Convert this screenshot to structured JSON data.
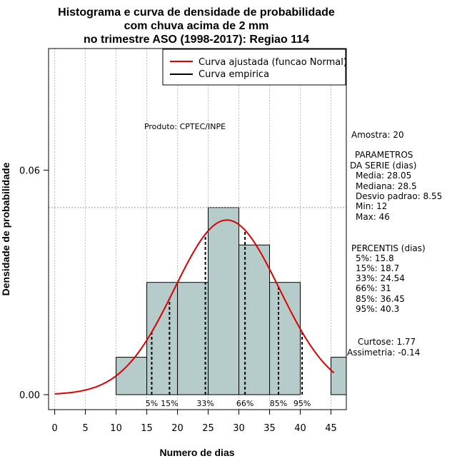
{
  "chart_data": {
    "type": "bar",
    "title_lines": [
      "Histograma e curva de densidade de probabilidade",
      "com chuva acima de 2 mm",
      "no trimestre ASO (1998-2017): Regiao 114"
    ],
    "xlabel": "Numero de dias",
    "ylabel": "Densidade de probabilidade",
    "xlim": [
      -1,
      47.5
    ],
    "ylim": [
      -0.004,
      0.0925
    ],
    "x_ticks": [
      0,
      5,
      10,
      15,
      20,
      25,
      30,
      35,
      40,
      45
    ],
    "y_ticks": [
      {
        "value": 0.0,
        "label": "0.00"
      },
      {
        "value": 0.06,
        "label": "0.06"
      }
    ],
    "grid": true,
    "bins": [
      {
        "start": 10,
        "end": 15,
        "density": 0.01
      },
      {
        "start": 15,
        "end": 20,
        "density": 0.03
      },
      {
        "start": 20,
        "end": 25,
        "density": 0.03
      },
      {
        "start": 25,
        "end": 30,
        "density": 0.05
      },
      {
        "start": 30,
        "end": 35,
        "density": 0.04
      },
      {
        "start": 35,
        "end": 40,
        "density": 0.03
      },
      {
        "start": 40,
        "end": 45,
        "density": 0.0
      },
      {
        "start": 45,
        "end": 50,
        "density": 0.01
      }
    ],
    "bar_color": "#b5cccb",
    "reference_line_y": 0.05,
    "fitted_curve": {
      "name": "Curva ajustada (funcao Normal)",
      "mean": 28.05,
      "sd": 8.55,
      "x_from": 0,
      "x_to": 45.5,
      "color": "#dd0000"
    },
    "legend": [
      {
        "label": "Curva ajustada (funcao Normal)",
        "color": "#dd0000"
      },
      {
        "label": "Curva empirica",
        "color": "#000000"
      }
    ],
    "legend_position": "top-right",
    "annotation": "Produto: CPTEC/INPE",
    "percentiles": [
      {
        "label": "5%",
        "value": 15.8
      },
      {
        "label": "15%",
        "value": 18.7
      },
      {
        "label": "33%",
        "value": 24.54
      },
      {
        "label": "66%",
        "value": 31
      },
      {
        "label": "85%",
        "value": 36.45
      },
      {
        "label": "95%",
        "value": 40.3
      }
    ],
    "side_stats": [
      "Amostra: 20",
      "",
      "PARAMETROS",
      "DA SERIE (dias)",
      "Media: 28.05",
      "Mediana: 28.5",
      "Desvio padrao: 8.55",
      "Min: 12",
      "Max: 46",
      "",
      "PERCENTIS (dias)",
      "5%: 15.8",
      "15%: 18.7",
      "33%: 24.54",
      "66%: 31",
      "85%: 36.45",
      "95%: 40.3",
      "",
      "Curtose: 1.77",
      "Assimetria: -0.14"
    ]
  }
}
